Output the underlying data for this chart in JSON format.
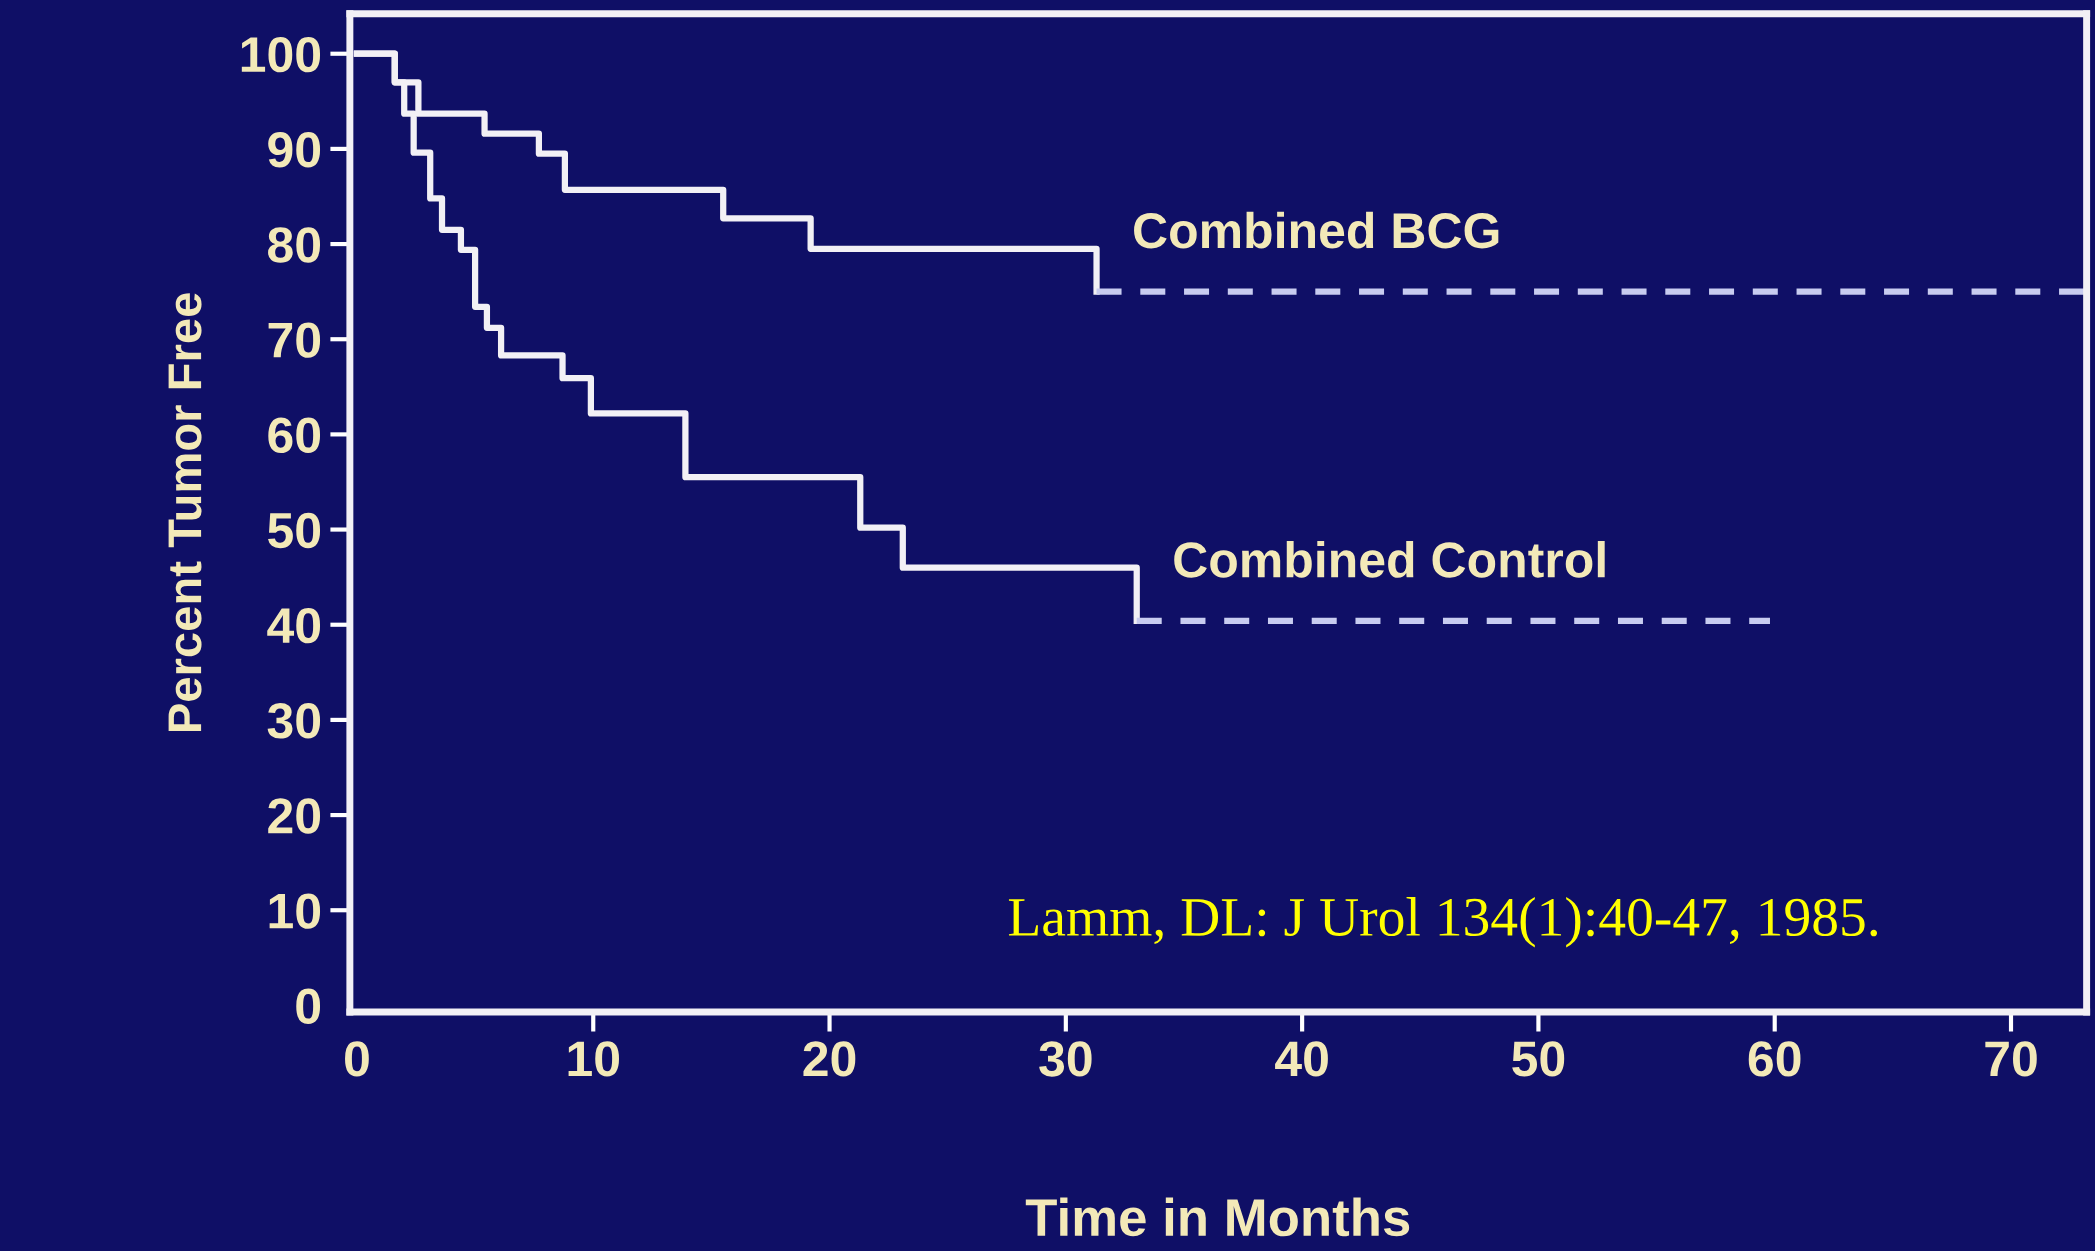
{
  "chart_data": {
    "type": "step",
    "xlabel": "Time in Months",
    "ylabel": "Percent Tumor Free",
    "xlim": [
      -0.3,
      73.2
    ],
    "ylim": [
      -0.7,
      104.2
    ],
    "xticks": [
      0,
      10,
      20,
      30,
      40,
      50,
      60,
      70
    ],
    "yticks": [
      0,
      10,
      20,
      30,
      40,
      50,
      60,
      70,
      80,
      90,
      100
    ],
    "grid": false,
    "legend": false,
    "marker": "none",
    "series": [
      {
        "name": "Combined BCG",
        "color": "#f2f0f5",
        "line_style": "solid",
        "x": [
          0,
          1.6,
          2.6,
          5.4,
          7.7,
          8.8,
          15.5,
          19.2,
          31.3
        ],
        "values": [
          100,
          97,
          93.7,
          91.6,
          89.5,
          85.7,
          82.7,
          79.5,
          75.0
        ]
      },
      {
        "color": "#c8ccf0",
        "line_style": "dashed",
        "x": [
          31.3,
          73.2
        ],
        "values": [
          75.0,
          75.0
        ]
      },
      {
        "name": "Combined Control",
        "color": "#f2f0f5",
        "line_style": "solid",
        "x": [
          0,
          1.6,
          2.0,
          2.4,
          3.1,
          3.6,
          4.4,
          5.0,
          5.5,
          6.1,
          8.7,
          9.9,
          13.9,
          21.3,
          23.1,
          33.0
        ],
        "values": [
          100,
          97,
          93.7,
          89.6,
          84.8,
          81.5,
          79.4,
          73.4,
          71.2,
          68.3,
          65.9,
          62.2,
          55.5,
          50.2,
          46.0,
          40.4
        ]
      },
      {
        "color": "#c8ccf0",
        "line_style": "dashed",
        "x": [
          33.0,
          59.8
        ],
        "values": [
          40.4,
          40.4
        ]
      }
    ],
    "annotations": [
      "Lamm, DL: J Urol 134(1):40-47, 1985."
    ]
  }
}
